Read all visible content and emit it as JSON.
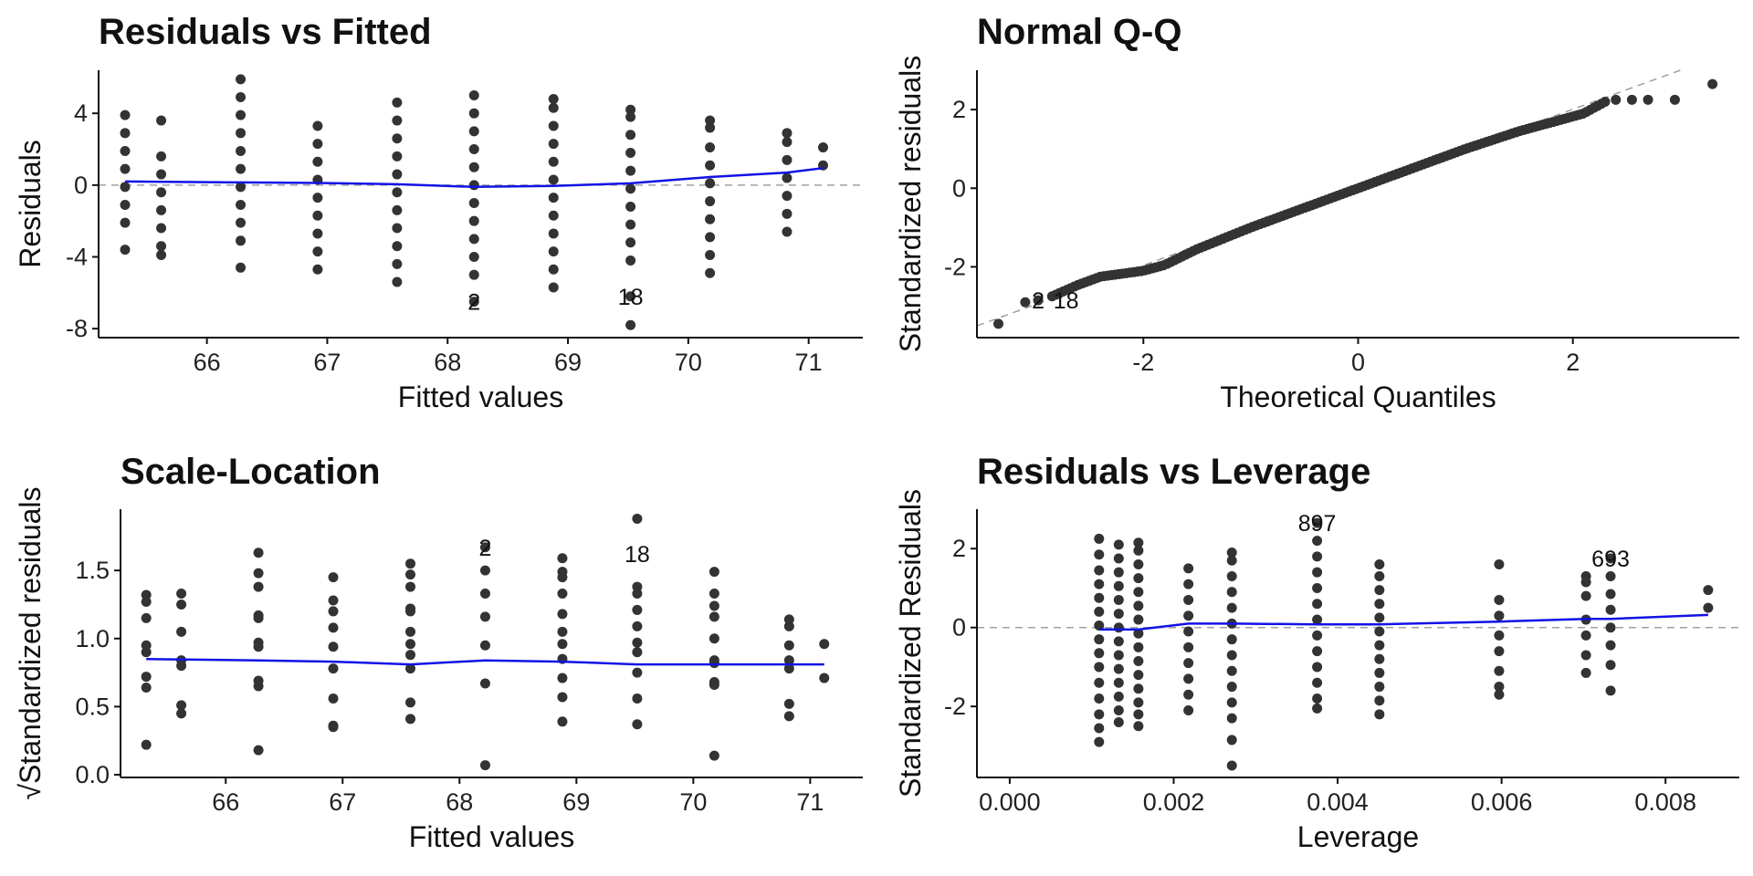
{
  "chart_data": [
    {
      "id": "rvf",
      "type": "scatter",
      "title": "Residuals vs Fitted",
      "xlabel": "Fitted values",
      "ylabel": "Residuals",
      "ylabel_prefix": "",
      "xlim": [
        65.1,
        71.45
      ],
      "ylim": [
        -8.5,
        6.4
      ],
      "xticks": [
        66,
        67,
        68,
        69,
        70,
        71
      ],
      "xticklabels": [
        "66",
        "67",
        "68",
        "69",
        "70",
        "71"
      ],
      "yticks": [
        -8,
        -4,
        0,
        4
      ],
      "yticklabels": [
        "-8",
        "-4",
        "0",
        "4"
      ],
      "refline": {
        "type": "h",
        "value": 0
      },
      "columns": [
        {
          "x": 65.32,
          "y": [
            3.9,
            2.9,
            1.9,
            0.9,
            -0.1,
            -1.1,
            -2.1,
            -3.6
          ]
        },
        {
          "x": 65.62,
          "y": [
            3.6,
            1.6,
            0.6,
            -0.4,
            -1.4,
            -2.4,
            -3.4,
            -3.9
          ]
        },
        {
          "x": 66.28,
          "y": [
            5.9,
            4.9,
            3.9,
            2.9,
            1.9,
            0.9,
            -0.1,
            -1.1,
            -2.1,
            -3.1,
            -4.6
          ]
        },
        {
          "x": 66.92,
          "y": [
            3.3,
            2.3,
            1.3,
            0.3,
            -0.7,
            -1.7,
            -2.7,
            -3.7,
            -4.7
          ]
        },
        {
          "x": 67.58,
          "y": [
            4.6,
            3.6,
            2.6,
            1.6,
            0.6,
            -0.4,
            -1.4,
            -2.4,
            -3.4,
            -4.4,
            -5.4
          ]
        },
        {
          "x": 68.22,
          "y": [
            5.0,
            4.0,
            3.0,
            2.0,
            1.0,
            0.0,
            -1.0,
            -2.0,
            -3.0,
            -4.0,
            -5.0,
            -6.5
          ]
        },
        {
          "x": 68.88,
          "y": [
            4.8,
            4.3,
            3.3,
            2.3,
            1.3,
            0.3,
            -0.7,
            -1.7,
            -2.7,
            -3.7,
            -4.7,
            -5.7
          ]
        },
        {
          "x": 69.52,
          "y": [
            4.2,
            3.8,
            2.8,
            1.8,
            0.8,
            -0.2,
            -1.2,
            -2.2,
            -3.2,
            -4.2,
            -6.2,
            -7.8
          ]
        },
        {
          "x": 70.18,
          "y": [
            3.6,
            3.2,
            2.1,
            1.1,
            0.1,
            -0.9,
            -1.9,
            -2.9,
            -3.9,
            -4.9
          ]
        },
        {
          "x": 70.82,
          "y": [
            2.9,
            2.4,
            1.4,
            0.4,
            -0.6,
            -1.6,
            -2.6
          ]
        },
        {
          "x": 71.12,
          "y": [
            2.1,
            1.1
          ]
        }
      ],
      "smooth": [
        [
          65.32,
          0.2
        ],
        [
          66.28,
          0.15
        ],
        [
          66.92,
          0.12
        ],
        [
          67.58,
          0.05
        ],
        [
          68.22,
          -0.1
        ],
        [
          68.88,
          -0.05
        ],
        [
          69.52,
          0.1
        ],
        [
          70.18,
          0.45
        ],
        [
          70.82,
          0.7
        ],
        [
          71.12,
          0.95
        ]
      ],
      "annotations": [
        {
          "text": "2",
          "x": 68.22,
          "y": -6.5
        },
        {
          "text": "18",
          "x": 69.52,
          "y": -6.2
        }
      ]
    },
    {
      "id": "qq",
      "type": "scatter",
      "title": "Normal Q-Q",
      "xlabel": "Theoretical Quantiles",
      "ylabel": "Standardized residuals",
      "ylabel_prefix": "",
      "xlim": [
        -3.55,
        3.55
      ],
      "ylim": [
        -3.8,
        3.0
      ],
      "xticks": [
        -2,
        0,
        2
      ],
      "xticklabels": [
        "-2",
        "0",
        "2"
      ],
      "yticks": [
        -2,
        0,
        2
      ],
      "yticklabels": [
        "-2",
        "0",
        "2"
      ],
      "refline": {
        "type": "ab",
        "x1": -3.55,
        "y1": -3.5,
        "x2": 3.0,
        "y2": 3.0
      },
      "qq": {
        "lower_points": [
          [
            -3.35,
            -3.45
          ],
          [
            -3.1,
            -2.9
          ],
          [
            -2.98,
            -2.85
          ]
        ],
        "upper_points": [
          [
            2.4,
            2.25
          ],
          [
            2.55,
            2.25
          ],
          [
            2.7,
            2.25
          ],
          [
            2.95,
            2.25
          ],
          [
            3.3,
            2.65
          ]
        ],
        "curve": [
          [
            -2.85,
            -2.75
          ],
          [
            -2.6,
            -2.45
          ],
          [
            -2.4,
            -2.25
          ],
          [
            -2.0,
            -2.1
          ],
          [
            -1.8,
            -1.95
          ],
          [
            -1.5,
            -1.55
          ],
          [
            -1.0,
            -1.0
          ],
          [
            -0.5,
            -0.5
          ],
          [
            0.0,
            0.0
          ],
          [
            0.5,
            0.5
          ],
          [
            1.0,
            1.0
          ],
          [
            1.5,
            1.45
          ],
          [
            1.9,
            1.75
          ],
          [
            2.1,
            1.9
          ],
          [
            2.3,
            2.2
          ]
        ],
        "curve_points": 150
      },
      "annotations": [
        {
          "text": "2",
          "x": -2.98,
          "y": -2.85
        },
        {
          "text": "18",
          "x": -2.72,
          "y": -2.85
        }
      ]
    },
    {
      "id": "sl",
      "type": "scatter",
      "title": "Scale-Location",
      "xlabel": "Fitted values",
      "ylabel": "Standardized residuals",
      "ylabel_prefix": "√",
      "xlim": [
        65.1,
        71.45
      ],
      "ylim": [
        -0.02,
        1.95
      ],
      "xticks": [
        66,
        67,
        68,
        69,
        70,
        71
      ],
      "xticklabels": [
        "66",
        "67",
        "68",
        "69",
        "70",
        "71"
      ],
      "yticks": [
        0.0,
        0.5,
        1.0,
        1.5
      ],
      "yticklabels": [
        "0.0",
        "0.5",
        "1.0",
        "1.5"
      ],
      "refline": null,
      "columns": [
        {
          "x": 65.32,
          "y": [
            1.32,
            1.27,
            1.15,
            0.95,
            0.9,
            0.72,
            0.64,
            0.22
          ]
        },
        {
          "x": 65.62,
          "y": [
            1.33,
            1.25,
            1.05,
            0.84,
            0.8,
            0.51,
            0.45
          ]
        },
        {
          "x": 66.28,
          "y": [
            1.63,
            1.48,
            1.38,
            1.17,
            1.15,
            0.97,
            0.94,
            0.69,
            0.65,
            0.18
          ]
        },
        {
          "x": 66.92,
          "y": [
            1.45,
            1.28,
            1.2,
            1.08,
            0.94,
            0.78,
            0.56,
            0.36,
            0.35
          ]
        },
        {
          "x": 67.58,
          "y": [
            1.55,
            1.47,
            1.38,
            1.22,
            1.2,
            1.05,
            0.96,
            0.88,
            0.78,
            0.53,
            0.41
          ]
        },
        {
          "x": 68.22,
          "y": [
            1.67,
            1.5,
            1.33,
            1.16,
            0.95,
            0.67,
            0.07
          ]
        },
        {
          "x": 68.88,
          "y": [
            1.59,
            1.49,
            1.45,
            1.33,
            1.18,
            1.05,
            0.96,
            0.85,
            0.71,
            0.57,
            0.39
          ]
        },
        {
          "x": 69.52,
          "y": [
            1.88,
            1.38,
            1.33,
            1.21,
            1.09,
            0.97,
            0.9,
            0.75,
            0.56,
            0.37
          ]
        },
        {
          "x": 70.18,
          "y": [
            1.49,
            1.33,
            1.24,
            1.16,
            1.0,
            0.84,
            0.82,
            0.68,
            0.66,
            0.14
          ]
        },
        {
          "x": 70.82,
          "y": [
            1.14,
            1.09,
            0.95,
            0.84,
            0.78,
            0.52,
            0.43
          ]
        },
        {
          "x": 71.12,
          "y": [
            0.96,
            0.71
          ]
        }
      ],
      "smooth": [
        [
          65.32,
          0.85
        ],
        [
          66.28,
          0.84
        ],
        [
          66.92,
          0.83
        ],
        [
          67.58,
          0.81
        ],
        [
          68.22,
          0.84
        ],
        [
          68.88,
          0.83
        ],
        [
          69.52,
          0.81
        ],
        [
          70.18,
          0.81
        ],
        [
          70.82,
          0.81
        ],
        [
          71.12,
          0.81
        ]
      ],
      "annotations": [
        {
          "text": "2",
          "x": 68.22,
          "y": 1.67
        },
        {
          "text": "18",
          "x": 69.52,
          "y": 1.62
        }
      ]
    },
    {
      "id": "rvl",
      "type": "scatter",
      "title": "Residuals vs Leverage",
      "xlabel": "Leverage",
      "ylabel": "Standardized Residuals",
      "ylabel_prefix": "",
      "xlim": [
        -0.0004,
        0.0089
      ],
      "ylim": [
        -3.8,
        3.0
      ],
      "xticks": [
        0.0,
        0.002,
        0.004,
        0.006,
        0.008
      ],
      "xticklabels": [
        "0.000",
        "0.002",
        "0.004",
        "0.006",
        "0.008"
      ],
      "yticks": [
        -2,
        0,
        2
      ],
      "yticklabels": [
        "-2",
        "0",
        "2"
      ],
      "refline": {
        "type": "h",
        "value": 0
      },
      "columns": [
        {
          "x": 0.00109,
          "y": [
            2.25,
            1.85,
            1.45,
            1.1,
            0.75,
            0.4,
            0.05,
            -0.3,
            -0.65,
            -1.0,
            -1.4,
            -1.8,
            -2.2,
            -2.55,
            -2.9
          ]
        },
        {
          "x": 0.00133,
          "y": [
            2.1,
            1.75,
            1.4,
            1.05,
            0.7,
            0.35,
            0.0,
            -0.35,
            -0.7,
            -1.05,
            -1.4,
            -1.75,
            -2.1,
            -2.4
          ]
        },
        {
          "x": 0.00157,
          "y": [
            2.15,
            1.95,
            1.6,
            1.25,
            0.9,
            0.55,
            0.2,
            -0.15,
            -0.5,
            -0.85,
            -1.2,
            -1.55,
            -1.9,
            -2.2,
            -2.5
          ]
        },
        {
          "x": 0.00218,
          "y": [
            1.5,
            1.1,
            0.7,
            0.3,
            -0.1,
            -0.5,
            -0.9,
            -1.3,
            -1.7,
            -2.1
          ]
        },
        {
          "x": 0.00271,
          "y": [
            1.9,
            1.7,
            1.3,
            0.9,
            0.5,
            0.1,
            -0.3,
            -0.7,
            -1.1,
            -1.5,
            -1.9,
            -2.3,
            -2.85,
            -3.5
          ]
        },
        {
          "x": 0.00375,
          "y": [
            2.65,
            2.2,
            1.8,
            1.4,
            1.0,
            0.6,
            0.2,
            -0.2,
            -0.6,
            -1.0,
            -1.4,
            -1.8,
            -2.05
          ]
        },
        {
          "x": 0.00451,
          "y": [
            1.6,
            1.3,
            0.95,
            0.6,
            0.25,
            -0.1,
            -0.45,
            -0.8,
            -1.15,
            -1.5,
            -1.85,
            -2.2
          ]
        },
        {
          "x": 0.00597,
          "y": [
            1.6,
            0.7,
            0.3,
            -0.2,
            -0.6,
            -1.1,
            -1.5,
            -1.7
          ]
        },
        {
          "x": 0.00703,
          "y": [
            1.3,
            1.15,
            0.8,
            0.2,
            -0.2,
            -0.7,
            -1.15
          ]
        },
        {
          "x": 0.00733,
          "y": [
            1.75,
            1.3,
            0.85,
            0.45,
            0.0,
            -0.45,
            -0.95,
            -1.6
          ]
        },
        {
          "x": 0.00852,
          "y": [
            0.95,
            0.5
          ]
        }
      ],
      "smooth": [
        [
          0.00109,
          -0.05
        ],
        [
          0.00157,
          -0.05
        ],
        [
          0.00218,
          0.1
        ],
        [
          0.00271,
          0.1
        ],
        [
          0.00375,
          0.08
        ],
        [
          0.00451,
          0.08
        ],
        [
          0.00597,
          0.15
        ],
        [
          0.00703,
          0.22
        ],
        [
          0.00733,
          0.22
        ],
        [
          0.00852,
          0.32
        ]
      ],
      "annotations": [
        {
          "text": "897",
          "x": 0.00375,
          "y": 2.65
        },
        {
          "text": "693",
          "x": 0.00733,
          "y": 1.75
        }
      ]
    }
  ],
  "colors": {
    "points": "#333333",
    "smooth": "#1212e6",
    "refline": "#a0a0a0",
    "axis": "#111111"
  }
}
